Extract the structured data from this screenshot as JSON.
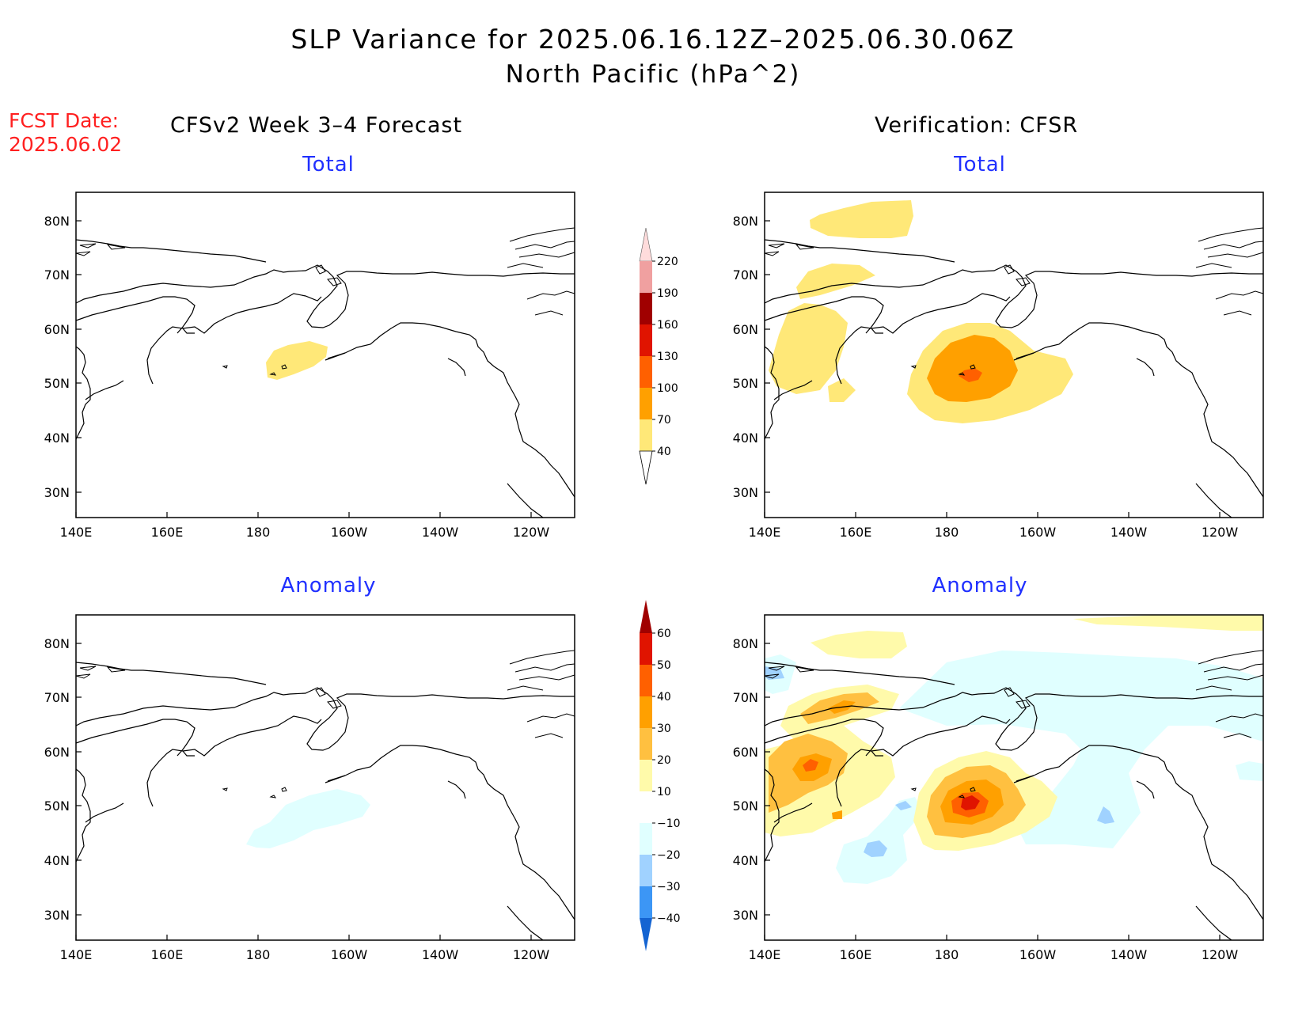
{
  "title": {
    "line1": "SLP Variance for 2025.06.16.12Z–2025.06.30.06Z",
    "line2": "North Pacific (hPa^2)"
  },
  "fcst_date": {
    "label": "FCST Date:",
    "value": "2025.06.02"
  },
  "left_heading": "CFSv2 Week 3–4 Forecast",
  "right_heading": "Verification: CFSR",
  "colors": {
    "subtitle": "#2030ff",
    "fcst": "#ff2020"
  },
  "chart_data": [
    {
      "type": "heatmap",
      "title": "Total",
      "group": "CFSv2 Week 3–4 Forecast",
      "lon_ticks": [
        "140E",
        "160E",
        "180",
        "160W",
        "140W",
        "120W"
      ],
      "lat_ticks": [
        "80N",
        "70N",
        "60N",
        "50N",
        "40N",
        "30N"
      ],
      "xlim": [
        "140E",
        "110W"
      ],
      "ylim": [
        25,
        85
      ],
      "features": [
        {
          "level": "40-70",
          "center": [
            "170W",
            "52N"
          ]
        }
      ]
    },
    {
      "type": "heatmap",
      "title": "Total",
      "group": "Verification: CFSR",
      "lon_ticks": [
        "140E",
        "160E",
        "180",
        "160W",
        "140W",
        "120W"
      ],
      "lat_ticks": [
        "80N",
        "70N",
        "60N",
        "50N",
        "40N",
        "30N"
      ],
      "xlim": [
        "140E",
        "110W"
      ],
      "ylim": [
        25,
        85
      ],
      "features": [
        {
          "level": "100-130",
          "center": [
            "174W",
            "50N"
          ]
        },
        {
          "level": "70-100",
          "center": [
            "175W",
            "50N"
          ]
        },
        {
          "level": "40-70",
          "center": [
            "175W",
            "50N"
          ]
        },
        {
          "level": "40-70",
          "center": [
            "145E",
            "55N"
          ]
        },
        {
          "level": "40-70",
          "center": [
            "158E",
            "81N"
          ]
        }
      ]
    },
    {
      "type": "heatmap",
      "title": "Anomaly",
      "group": "CFSv2 Week 3–4 Forecast",
      "lon_ticks": [
        "140E",
        "160E",
        "180",
        "160W",
        "140W",
        "120W"
      ],
      "lat_ticks": [
        "80N",
        "70N",
        "60N",
        "50N",
        "40N",
        "30N"
      ],
      "xlim": [
        "140E",
        "110W"
      ],
      "ylim": [
        25,
        85
      ],
      "features": [
        {
          "level": "-20--10",
          "center": [
            "170W",
            "46N"
          ]
        }
      ]
    },
    {
      "type": "heatmap",
      "title": "Anomaly",
      "group": "Verification: CFSR",
      "lon_ticks": [
        "140E",
        "160E",
        "180",
        "160W",
        "140W",
        "120W"
      ],
      "lat_ticks": [
        "80N",
        "70N",
        "60N",
        "50N",
        "40N",
        "30N"
      ],
      "xlim": [
        "140E",
        "110W"
      ],
      "ylim": [
        25,
        85
      ],
      "features": [
        {
          "level": "50-60",
          "center": [
            "174W",
            "50N"
          ]
        },
        {
          "level": "40-50",
          "center": [
            "150E",
            "57N"
          ]
        },
        {
          "level": "30-40",
          "center": [
            "152E",
            "66N"
          ]
        },
        {
          "level": "-30--20",
          "center": [
            "165E",
            "42N"
          ]
        },
        {
          "level": "-30--20",
          "center": [
            "145W",
            "49N"
          ]
        },
        {
          "level": "-20--10",
          "center": [
            "160W",
            "67N"
          ]
        }
      ]
    }
  ],
  "colorbar_total": {
    "labels": [
      "40",
      "70",
      "100",
      "130",
      "160",
      "190",
      "220"
    ],
    "colors": [
      "#ffe878",
      "#ffa000",
      "#ff6000",
      "#e01400",
      "#a00000",
      "#f0a0a0",
      "#ffdcdc"
    ]
  },
  "colorbar_anomaly": {
    "labels": [
      "60",
      "50",
      "40",
      "30",
      "20",
      "10",
      "−10",
      "−20",
      "−30",
      "−40"
    ],
    "colors": [
      "#a00000",
      "#e01400",
      "#ff6000",
      "#ffa000",
      "#ffc040",
      "#fffaaa",
      "#ffffff",
      "#e0ffff",
      "#a0d2ff",
      "#3c96f5",
      "#1464d2"
    ]
  }
}
